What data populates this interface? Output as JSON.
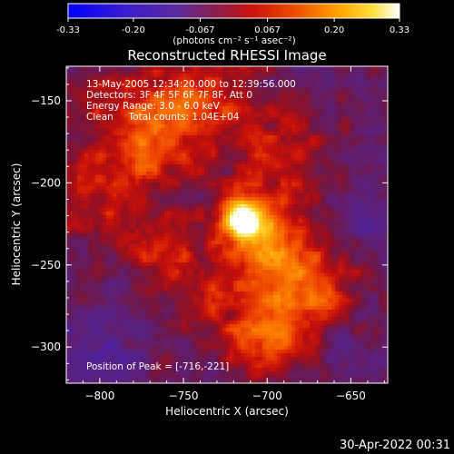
{
  "colorbar": {
    "ticks": [
      "-0.33",
      "-0.20",
      "-0.067",
      "0.067",
      "0.20",
      "0.33"
    ],
    "tick_values": [
      -0.33,
      -0.2,
      -0.067,
      0.067,
      0.2,
      0.33
    ],
    "range": [
      -0.33,
      0.33
    ],
    "unit_label": "(photons cm⁻² s⁻¹ asec⁻²)"
  },
  "chart_data": {
    "type": "heatmap",
    "title": "Reconstructed RHESSI Image",
    "xlabel": "Heliocentric X (arcsec)",
    "ylabel": "Heliocentric Y (arcsec)",
    "xlim": [
      -820,
      -628
    ],
    "ylim": [
      -322,
      -129
    ],
    "xticks": [
      -800,
      -750,
      -700,
      -650
    ],
    "yticks": [
      -150,
      -200,
      -250,
      -300
    ],
    "xtick_labels": [
      "−800",
      "−750",
      "−700",
      "−650"
    ],
    "ytick_labels": [
      "−150",
      "−200",
      "−250",
      "−300"
    ],
    "annotations": [
      "13-May-2005 12:34:20.000 to 12:39:56.000",
      "Detectors: 3F 4F 5F 6F 7F 8F, Att 0",
      "Energy Range: 3.0 - 6.0 keV",
      "Clean     Total counts: 1.04E+04"
    ],
    "peak_label": "Position of Peak = [-716,-221]",
    "peak": {
      "x": -716,
      "y": -221,
      "value": 0.33
    },
    "blobs": [
      {
        "x": -716,
        "y": -221,
        "value": 0.33,
        "sigma": 8
      },
      {
        "x": -705,
        "y": -230,
        "value": 0.18,
        "sigma": 14
      },
      {
        "x": -785,
        "y": -200,
        "value": 0.1,
        "sigma": 30
      },
      {
        "x": -770,
        "y": -160,
        "value": 0.12,
        "sigma": 22
      },
      {
        "x": -735,
        "y": -150,
        "value": 0.12,
        "sigma": 18
      },
      {
        "x": -690,
        "y": -185,
        "value": 0.1,
        "sigma": 20
      },
      {
        "x": -690,
        "y": -255,
        "value": 0.13,
        "sigma": 22
      },
      {
        "x": -700,
        "y": -295,
        "value": 0.15,
        "sigma": 16
      },
      {
        "x": -670,
        "y": -270,
        "value": 0.09,
        "sigma": 16
      },
      {
        "x": -740,
        "y": -270,
        "value": 0.08,
        "sigma": 18
      },
      {
        "x": -760,
        "y": -240,
        "value": 0.07,
        "sigma": 16
      },
      {
        "x": -800,
        "y": -300,
        "value": -0.08,
        "sigma": 20
      },
      {
        "x": -645,
        "y": -220,
        "value": -0.07,
        "sigma": 14
      },
      {
        "x": -760,
        "y": -210,
        "value": -0.05,
        "sigma": 12
      },
      {
        "x": -650,
        "y": -300,
        "value": -0.04,
        "sigma": 14
      }
    ]
  },
  "footer": {
    "timestamp": "30-Apr-2022 00:31"
  },
  "colors": {
    "background": "#000000",
    "text": "#ffffff"
  }
}
